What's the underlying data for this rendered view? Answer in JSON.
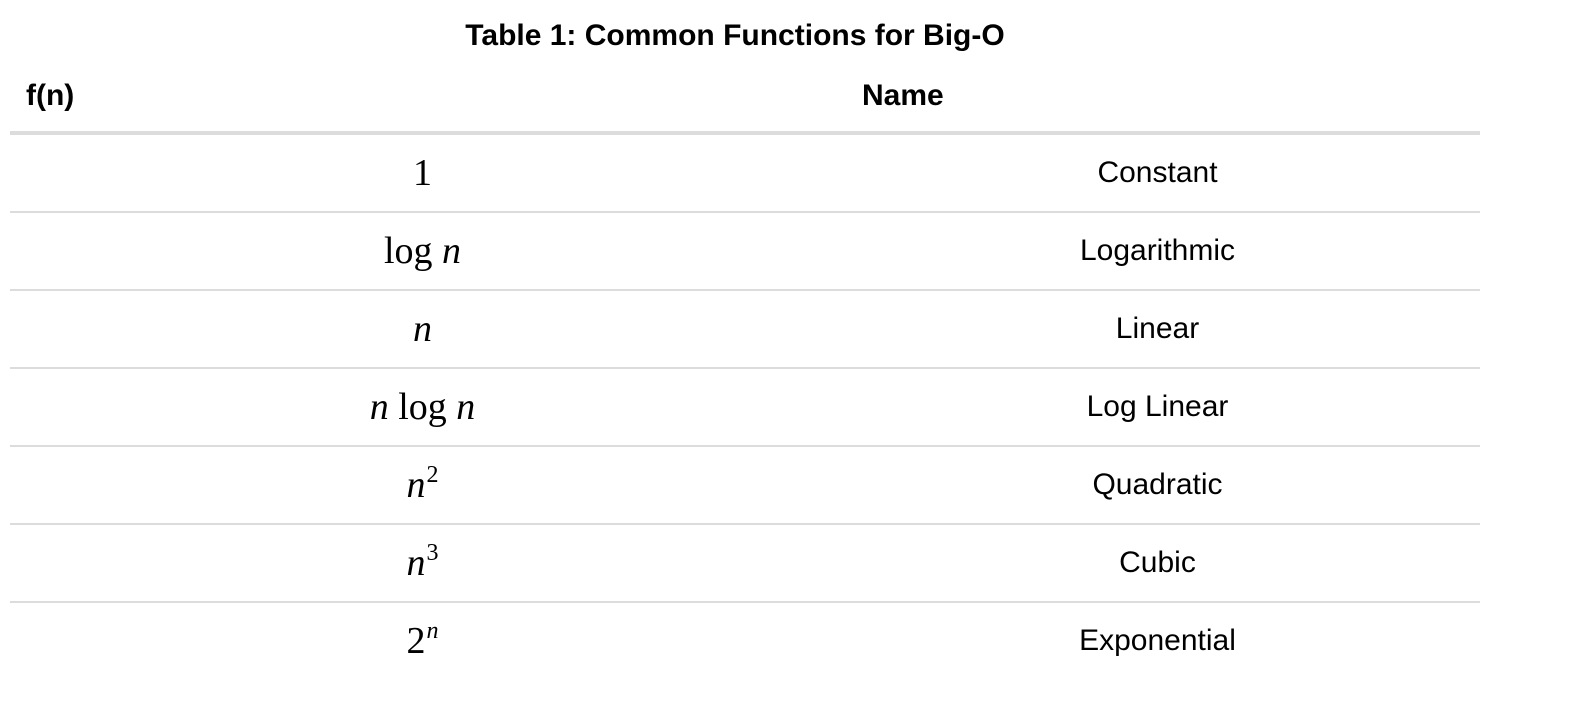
{
  "caption": "Table 1: Common Functions for Big-O",
  "columns": {
    "fn": "f(n)",
    "name": "Name"
  },
  "rows": [
    {
      "fn": {
        "base": "1",
        "italic_base": false,
        "sup": "",
        "italic_sup": false
      },
      "name": "Constant"
    },
    {
      "fn": {
        "base": "log n",
        "italic_base": false,
        "sup": "",
        "italic_sup": false
      },
      "name": "Logarithmic"
    },
    {
      "fn": {
        "base": "n",
        "italic_base": true,
        "sup": "",
        "italic_sup": false
      },
      "name": "Linear"
    },
    {
      "fn": {
        "base": "n log n",
        "italic_base": false,
        "sup": "",
        "italic_sup": false
      },
      "name": "Log Linear"
    },
    {
      "fn": {
        "base": "n",
        "italic_base": true,
        "sup": "2",
        "italic_sup": false
      },
      "name": "Quadratic"
    },
    {
      "fn": {
        "base": "n",
        "italic_base": true,
        "sup": "3",
        "italic_sup": false
      },
      "name": "Cubic"
    },
    {
      "fn": {
        "base": "2",
        "italic_base": false,
        "sup": "n",
        "italic_sup": true
      },
      "name": "Exponential"
    }
  ],
  "colors": {
    "rule": "#dcdcdc",
    "text": "#000000",
    "background": "#ffffff"
  }
}
